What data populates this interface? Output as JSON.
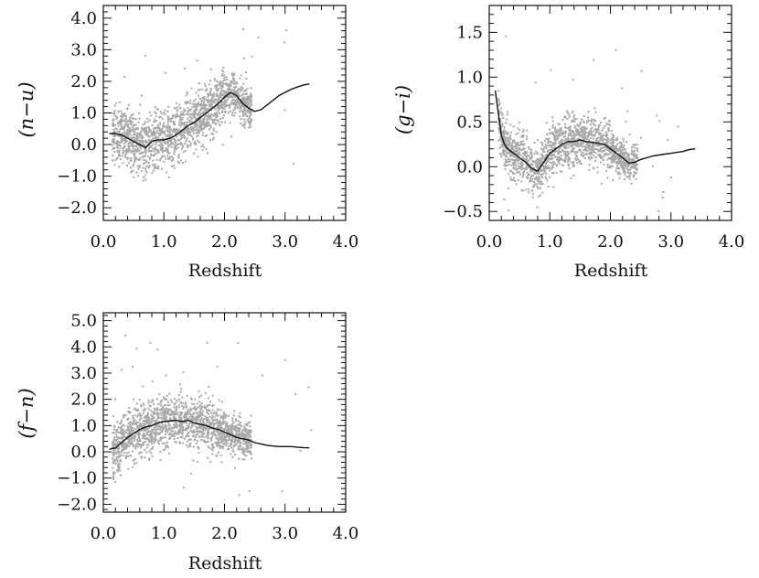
{
  "colors": {
    "axis": "#111111",
    "points": "#a8a8a8",
    "median_line": "#111111",
    "background": "#ffffff"
  },
  "chart_data": [
    {
      "id": "n-u",
      "type": "scatter",
      "ylabel": "(n−u)",
      "xlabel": "Redshift",
      "xlim": [
        0.0,
        4.0
      ],
      "ylim": [
        -2.4,
        4.4
      ],
      "xticks": [
        "0.0",
        "1.0",
        "2.0",
        "3.0",
        "4.0"
      ],
      "yticks": [
        "4.0",
        "3.0",
        "2.0",
        "1.0",
        "0.0",
        "−1.0",
        "−2.0"
      ],
      "scatter_model": {
        "n": 1700,
        "x_range": [
          0.15,
          2.45
        ],
        "spread": 0.45,
        "outliers": 30,
        "outlier_y": [
          -1.3,
          4.0
        ]
      },
      "median": {
        "x": [
          0.1,
          0.2,
          0.3,
          0.4,
          0.5,
          0.6,
          0.7,
          0.8,
          0.9,
          1.0,
          1.1,
          1.2,
          1.3,
          1.4,
          1.5,
          1.6,
          1.7,
          1.8,
          1.9,
          2.0,
          2.1,
          2.2,
          2.3,
          2.4,
          2.5,
          2.6,
          2.7,
          2.8,
          2.9,
          3.0,
          3.1,
          3.2,
          3.3,
          3.4
        ],
        "y": [
          0.35,
          0.35,
          0.3,
          0.2,
          0.1,
          0.0,
          -0.1,
          0.1,
          0.15,
          0.15,
          0.2,
          0.3,
          0.45,
          0.6,
          0.7,
          0.85,
          1.0,
          1.15,
          1.3,
          1.5,
          1.65,
          1.55,
          1.3,
          1.15,
          1.05,
          1.1,
          1.25,
          1.4,
          1.55,
          1.65,
          1.75,
          1.82,
          1.88,
          1.92
        ]
      }
    },
    {
      "id": "g-i",
      "type": "scatter",
      "ylabel": "(g−i)",
      "xlabel": "Redshift",
      "xlim": [
        0.0,
        4.0
      ],
      "ylim": [
        -0.6,
        1.8
      ],
      "xticks": [
        "0.0",
        "1.0",
        "2.0",
        "3.0",
        "4.0"
      ],
      "yticks": [
        "1.5",
        "1.0",
        "0.5",
        "0.0",
        "−0.5"
      ],
      "scatter_model": {
        "n": 1700,
        "x_range": [
          0.15,
          2.45
        ],
        "spread": 0.14,
        "outliers": 30,
        "outlier_y": [
          -0.5,
          1.5
        ]
      },
      "median": {
        "x": [
          0.1,
          0.15,
          0.2,
          0.25,
          0.3,
          0.4,
          0.5,
          0.6,
          0.7,
          0.8,
          0.9,
          1.0,
          1.1,
          1.2,
          1.3,
          1.4,
          1.5,
          1.6,
          1.7,
          1.8,
          1.9,
          2.0,
          2.1,
          2.2,
          2.3,
          2.4,
          2.5,
          2.6,
          2.7,
          2.8,
          2.9,
          3.0,
          3.1,
          3.2,
          3.3,
          3.4
        ],
        "y": [
          0.85,
          0.6,
          0.35,
          0.25,
          0.2,
          0.15,
          0.1,
          0.05,
          -0.02,
          -0.05,
          0.05,
          0.15,
          0.2,
          0.25,
          0.28,
          0.28,
          0.3,
          0.28,
          0.27,
          0.26,
          0.25,
          0.2,
          0.15,
          0.1,
          0.04,
          0.05,
          0.08,
          0.1,
          0.12,
          0.13,
          0.14,
          0.15,
          0.16,
          0.17,
          0.19,
          0.2
        ]
      }
    },
    {
      "id": "f-n",
      "type": "scatter",
      "ylabel": "(f−n)",
      "xlabel": "Redshift",
      "xlim": [
        0.0,
        4.0
      ],
      "ylim": [
        -2.3,
        5.3
      ],
      "xticks": [
        "0.0",
        "1.0",
        "2.0",
        "3.0",
        "4.0"
      ],
      "yticks": [
        "5.0",
        "4.0",
        "3.0",
        "2.0",
        "1.0",
        "0.0",
        "−1.0",
        "−2.0"
      ],
      "scatter_model": {
        "n": 1700,
        "x_range": [
          0.15,
          2.45
        ],
        "spread": 0.5,
        "outliers": 30,
        "outlier_y": [
          -1.7,
          4.7
        ]
      },
      "median": {
        "x": [
          0.1,
          0.2,
          0.3,
          0.4,
          0.5,
          0.6,
          0.7,
          0.8,
          0.9,
          1.0,
          1.1,
          1.2,
          1.3,
          1.4,
          1.5,
          1.6,
          1.7,
          1.8,
          1.9,
          2.0,
          2.1,
          2.2,
          2.3,
          2.4,
          2.5,
          2.6,
          2.7,
          2.8,
          2.9,
          3.0,
          3.1,
          3.2,
          3.3,
          3.4
        ],
        "y": [
          0.1,
          0.15,
          0.35,
          0.55,
          0.7,
          0.85,
          0.95,
          1.0,
          1.1,
          1.15,
          1.18,
          1.2,
          1.15,
          1.2,
          1.1,
          1.05,
          1.0,
          0.9,
          0.85,
          0.75,
          0.65,
          0.55,
          0.5,
          0.45,
          0.35,
          0.3,
          0.25,
          0.22,
          0.2,
          0.2,
          0.2,
          0.18,
          0.16,
          0.15
        ]
      }
    }
  ]
}
